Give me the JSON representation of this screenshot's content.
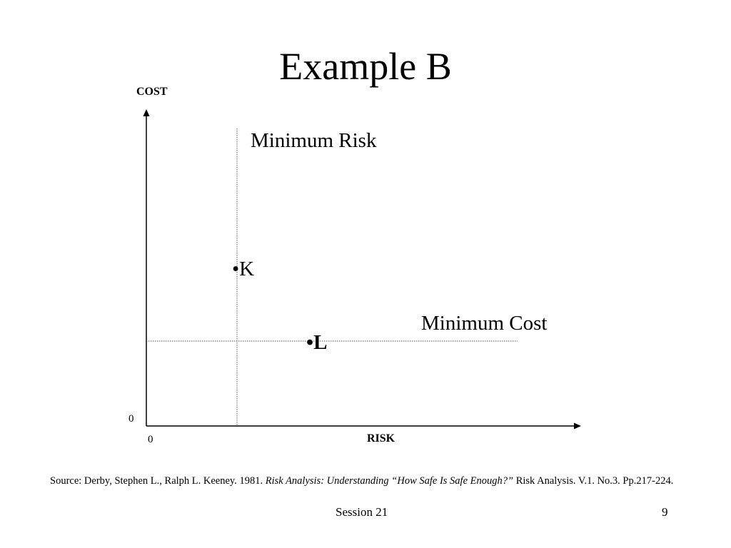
{
  "slide": {
    "title": "Example B",
    "footer_left": "Session 21",
    "footer_right": "9"
  },
  "diagram": {
    "y_axis_label": "COST",
    "x_axis_label": "RISK",
    "y_origin": "0",
    "x_origin": "0",
    "minimum_risk_label": "Minimum Risk",
    "minimum_cost_label": "Minimum Cost",
    "point_k": "•K",
    "point_l": "•L"
  },
  "source": {
    "prefix": "Source: Derby, Stephen L., Ralph L. Keeney. 1981. ",
    "title_italic": "Risk Analysis: Understanding “How Safe Is Safe Enough?”",
    "suffix": " Risk Analysis. V.1. No.3. Pp.217-224."
  }
}
